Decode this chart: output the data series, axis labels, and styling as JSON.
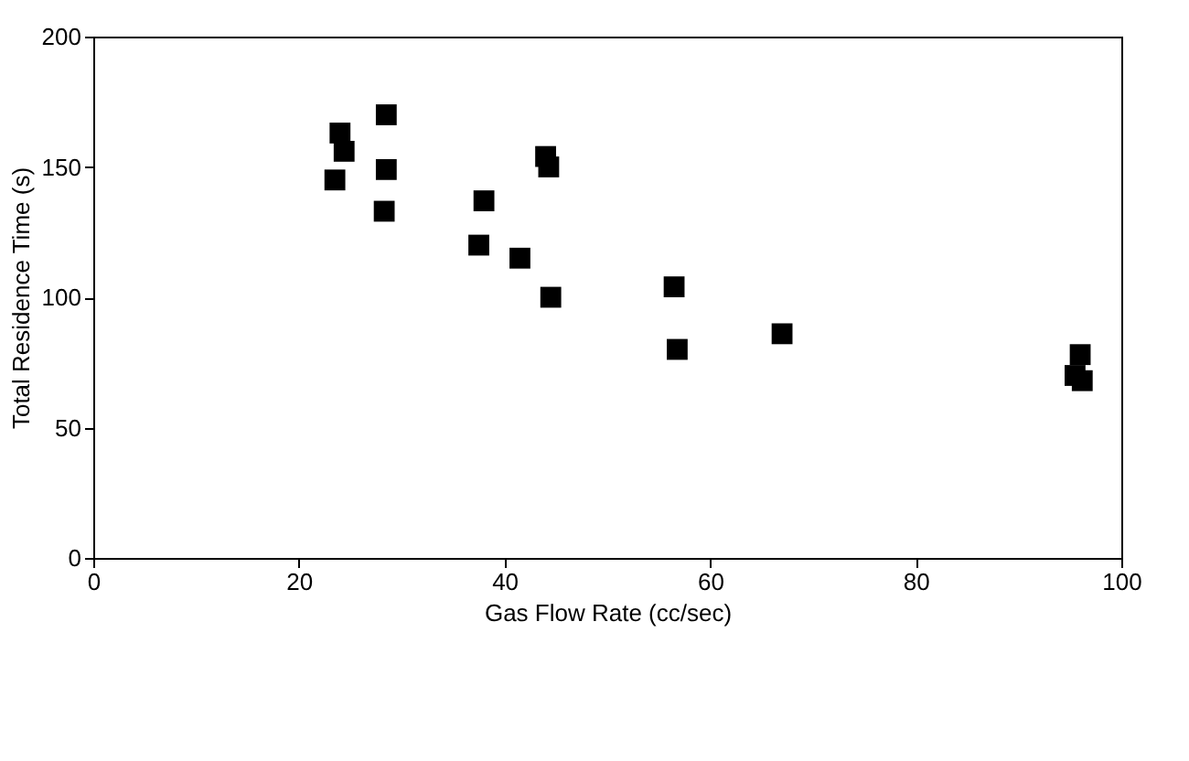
{
  "chart_data": {
    "type": "scatter",
    "xlabel": "Gas Flow Rate (cc/sec)",
    "ylabel": "Total Residence Time (s)",
    "x": [
      23.5,
      24,
      24.4,
      28.5,
      28.5,
      28.3,
      37.5,
      38,
      41.5,
      44,
      44.3,
      44.5,
      56.5,
      56.8,
      67,
      96,
      95.5,
      96.2
    ],
    "series": [
      {
        "color": "#000000",
        "values": [
          145,
          163,
          156,
          170,
          149,
          133,
          120,
          137,
          115,
          154,
          150,
          100,
          104,
          80,
          86,
          78,
          70,
          68
        ]
      }
    ],
    "xlim": [
      0,
      100
    ],
    "xticks": [
      0,
      20,
      40,
      60,
      80,
      100
    ],
    "ylim": [
      0,
      200
    ],
    "yticks": [
      0,
      50,
      100,
      150,
      200
    ],
    "marker": "square",
    "grid": false,
    "legend": false
  }
}
